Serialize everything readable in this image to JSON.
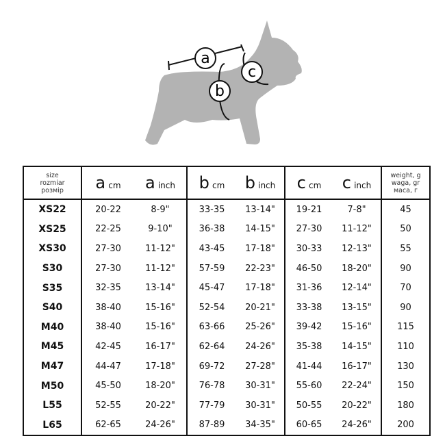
{
  "diagram": {
    "labels": [
      "a",
      "b",
      "c"
    ],
    "silhouette_color": "#b3b3b3"
  },
  "header": {
    "size": [
      "size",
      "rozmiar",
      "розмір"
    ],
    "a_cm": {
      "letter": "a",
      "unit": "cm"
    },
    "a_inch": {
      "letter": "a",
      "unit": "inch"
    },
    "b_cm": {
      "letter": "b",
      "unit": "cm"
    },
    "b_inch": {
      "letter": "b",
      "unit": "inch"
    },
    "c_cm": {
      "letter": "c",
      "unit": "cm"
    },
    "c_inch": {
      "letter": "c",
      "unit": "inch"
    },
    "weight": [
      "weight, g",
      "waga, gr",
      "маса, г"
    ]
  },
  "rows": [
    [
      "XS22",
      "20-22",
      "8-9\"",
      "33-35",
      "13-14\"",
      "19-21",
      "7-8\"",
      "45"
    ],
    [
      "XS25",
      "22-25",
      "9-10\"",
      "36-38",
      "14-15\"",
      "27-30",
      "11-12\"",
      "50"
    ],
    [
      "XS30",
      "27-30",
      "11-12\"",
      "43-45",
      "17-18\"",
      "30-33",
      "12-13\"",
      "55"
    ],
    [
      "S30",
      "27-30",
      "11-12\"",
      "57-59",
      "22-23\"",
      "46-50",
      "18-20\"",
      "90"
    ],
    [
      "S35",
      "32-35",
      "13-14\"",
      "45-47",
      "17-18\"",
      "31-36",
      "12-14\"",
      "70"
    ],
    [
      "S40",
      "38-40",
      "15-16\"",
      "52-54",
      "20-21\"",
      "33-38",
      "13-15\"",
      "90"
    ],
    [
      "M40",
      "38-40",
      "15-16\"",
      "63-66",
      "25-26\"",
      "39-42",
      "15-16\"",
      "115"
    ],
    [
      "M45",
      "42-45",
      "16-17\"",
      "62-64",
      "24-26\"",
      "35-38",
      "14-15\"",
      "110"
    ],
    [
      "M47",
      "44-47",
      "17-18\"",
      "69-72",
      "27-28\"",
      "41-44",
      "16-17\"",
      "130"
    ],
    [
      "M50",
      "45-50",
      "18-20\"",
      "76-78",
      "30-31\"",
      "55-60",
      "22-24\"",
      "150"
    ],
    [
      "L55",
      "52-55",
      "20-22\"",
      "77-79",
      "30-31\"",
      "50-55",
      "20-22\"",
      "180"
    ],
    [
      "L65",
      "62-65",
      "24-26\"",
      "87-89",
      "34-35\"",
      "60-65",
      "24-26\"",
      "200"
    ]
  ]
}
